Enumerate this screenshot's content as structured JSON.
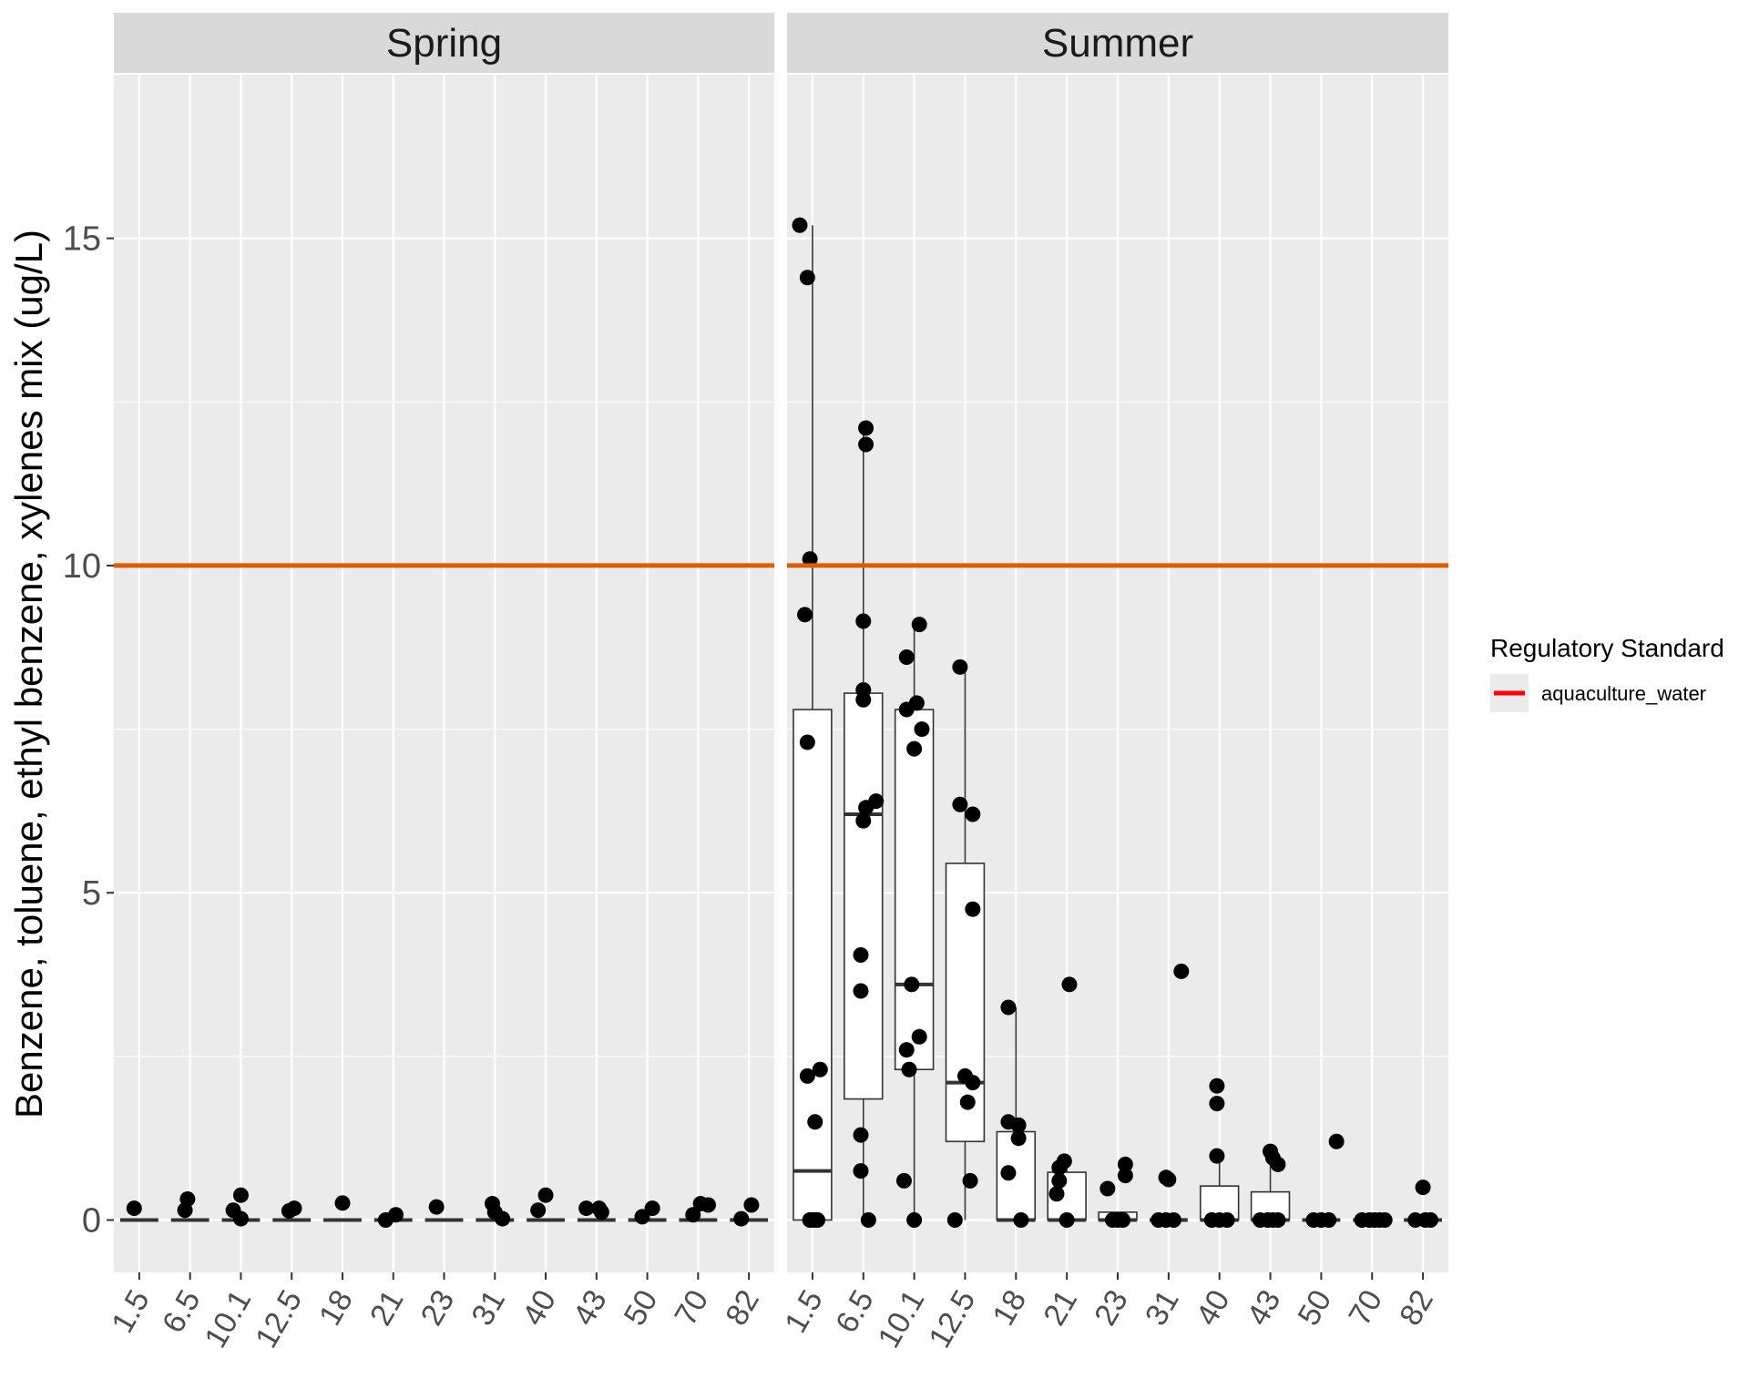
{
  "chart_data": {
    "type": "boxplot",
    "ylabel": "Benzene, toluene, ethyl benzene, xylenes mix (ug/L)",
    "xlabel": "",
    "ylim": [
      -0.8,
      17.5
    ],
    "yticks": [
      0,
      5,
      10,
      15
    ],
    "categories": [
      "1.5",
      "6.5",
      "10.1",
      "12.5",
      "18",
      "21",
      "23",
      "31",
      "40",
      "43",
      "50",
      "70",
      "82"
    ],
    "colors": {
      "panel_bg": "#ebebeb",
      "strip_bg": "#d9d9d9",
      "grid": "#ffffff",
      "standard_line": "#d95f02",
      "legend_key_line": "#ff0000",
      "points": "#000000"
    },
    "regulatory_standard": {
      "legend_title": "Regulatory Standard",
      "label": "aquaculture_water",
      "value": 10
    },
    "panels": [
      {
        "name": "Spring",
        "boxes": [
          {
            "category": "1.5",
            "min": 0,
            "q1": 0,
            "median": 0,
            "q3": 0,
            "max": 0
          },
          {
            "category": "6.5",
            "min": 0,
            "q1": 0,
            "median": 0,
            "q3": 0,
            "max": 0
          },
          {
            "category": "10.1",
            "min": 0,
            "q1": 0,
            "median": 0,
            "q3": 0,
            "max": 0
          },
          {
            "category": "12.5",
            "min": 0,
            "q1": 0,
            "median": 0,
            "q3": 0,
            "max": 0
          },
          {
            "category": "18",
            "min": 0,
            "q1": 0,
            "median": 0,
            "q3": 0,
            "max": 0
          },
          {
            "category": "21",
            "min": 0,
            "q1": 0,
            "median": 0,
            "q3": 0,
            "max": 0
          },
          {
            "category": "23",
            "min": 0,
            "q1": 0,
            "median": 0,
            "q3": 0,
            "max": 0
          },
          {
            "category": "31",
            "min": 0,
            "q1": 0,
            "median": 0,
            "q3": 0,
            "max": 0
          },
          {
            "category": "40",
            "min": 0,
            "q1": 0,
            "median": 0,
            "q3": 0,
            "max": 0
          },
          {
            "category": "43",
            "min": 0,
            "q1": 0,
            "median": 0,
            "q3": 0,
            "max": 0
          },
          {
            "category": "50",
            "min": 0,
            "q1": 0,
            "median": 0,
            "q3": 0,
            "max": 0
          },
          {
            "category": "70",
            "min": 0,
            "q1": 0,
            "median": 0,
            "q3": 0,
            "max": 0
          },
          {
            "category": "82",
            "min": 0,
            "q1": 0,
            "median": 0,
            "q3": 0,
            "max": 0
          }
        ],
        "points": [
          {
            "category": "1.5",
            "jitter": -0.1,
            "value": 0.18
          },
          {
            "category": "6.5",
            "jitter": -0.1,
            "value": 0.15
          },
          {
            "category": "6.5",
            "jitter": -0.05,
            "value": 0.32
          },
          {
            "category": "10.1",
            "jitter": -0.15,
            "value": 0.15
          },
          {
            "category": "10.1",
            "jitter": 0.0,
            "value": 0.38
          },
          {
            "category": "10.1",
            "jitter": 0.0,
            "value": 0.02
          },
          {
            "category": "12.5",
            "jitter": -0.05,
            "value": 0.14
          },
          {
            "category": "12.5",
            "jitter": 0.05,
            "value": 0.18
          },
          {
            "category": "18",
            "jitter": 0.0,
            "value": 0.26
          },
          {
            "category": "21",
            "jitter": -0.15,
            "value": 0.0
          },
          {
            "category": "21",
            "jitter": 0.05,
            "value": 0.08
          },
          {
            "category": "23",
            "jitter": -0.15,
            "value": 0.2
          },
          {
            "category": "31",
            "jitter": -0.05,
            "value": 0.25
          },
          {
            "category": "31",
            "jitter": 0.0,
            "value": 0.12
          },
          {
            "category": "31",
            "jitter": 0.15,
            "value": 0.02
          },
          {
            "category": "40",
            "jitter": -0.15,
            "value": 0.15
          },
          {
            "category": "40",
            "jitter": 0.0,
            "value": 0.38
          },
          {
            "category": "43",
            "jitter": -0.2,
            "value": 0.18
          },
          {
            "category": "43",
            "jitter": 0.05,
            "value": 0.18
          },
          {
            "category": "43",
            "jitter": 0.1,
            "value": 0.12
          },
          {
            "category": "50",
            "jitter": -0.1,
            "value": 0.05
          },
          {
            "category": "50",
            "jitter": 0.1,
            "value": 0.18
          },
          {
            "category": "70",
            "jitter": -0.1,
            "value": 0.08
          },
          {
            "category": "70",
            "jitter": 0.05,
            "value": 0.25
          },
          {
            "category": "70",
            "jitter": 0.2,
            "value": 0.23
          },
          {
            "category": "82",
            "jitter": -0.15,
            "value": 0.02
          },
          {
            "category": "82",
            "jitter": 0.05,
            "value": 0.23
          }
        ]
      },
      {
        "name": "Summer",
        "boxes": [
          {
            "category": "1.5",
            "min": 0,
            "q1": 0,
            "median": 0.75,
            "q3": 7.8,
            "max": 15.2
          },
          {
            "category": "6.5",
            "min": 0,
            "q1": 1.85,
            "median": 6.2,
            "q3": 8.05,
            "max": 12.1
          },
          {
            "category": "10.1",
            "min": 0,
            "q1": 2.3,
            "median": 3.6,
            "q3": 7.8,
            "max": 9.1
          },
          {
            "category": "12.5",
            "min": 0,
            "q1": 1.2,
            "median": 2.1,
            "q3": 5.45,
            "max": 8.45
          },
          {
            "category": "18",
            "min": 0,
            "q1": 0,
            "median": 0,
            "q3": 1.35,
            "max": 3.25
          },
          {
            "category": "21",
            "min": 0,
            "q1": 0,
            "median": 0,
            "q3": 0.73,
            "max": 0.9
          },
          {
            "category": "23",
            "min": 0,
            "q1": 0,
            "median": 0,
            "q3": 0.12,
            "max": 0.12
          },
          {
            "category": "31",
            "min": 0,
            "q1": 0,
            "median": 0,
            "q3": 0,
            "max": 0
          },
          {
            "category": "40",
            "min": 0,
            "q1": 0,
            "median": 0,
            "q3": 0.52,
            "max": 0.98
          },
          {
            "category": "43",
            "min": 0,
            "q1": 0,
            "median": 0,
            "q3": 0.43,
            "max": 1.05
          },
          {
            "category": "50",
            "min": 0,
            "q1": 0,
            "median": 0,
            "q3": 0,
            "max": 0
          },
          {
            "category": "70",
            "min": 0,
            "q1": 0,
            "median": 0,
            "q3": 0,
            "max": 0
          },
          {
            "category": "82",
            "min": 0,
            "q1": 0,
            "median": 0,
            "q3": 0,
            "max": 0
          }
        ],
        "points": [
          {
            "category": "1.5",
            "jitter": -0.25,
            "value": 15.2
          },
          {
            "category": "1.5",
            "jitter": -0.1,
            "value": 14.4
          },
          {
            "category": "1.5",
            "jitter": -0.05,
            "value": 10.1
          },
          {
            "category": "1.5",
            "jitter": -0.15,
            "value": 9.25
          },
          {
            "category": "1.5",
            "jitter": -0.1,
            "value": 7.3
          },
          {
            "category": "1.5",
            "jitter": 0.15,
            "value": 2.3
          },
          {
            "category": "1.5",
            "jitter": -0.1,
            "value": 2.2
          },
          {
            "category": "1.5",
            "jitter": 0.05,
            "value": 1.5
          },
          {
            "category": "1.5",
            "jitter": -0.05,
            "value": 0.0
          },
          {
            "category": "1.5",
            "jitter": 0.0,
            "value": 0.0
          },
          {
            "category": "1.5",
            "jitter": 0.05,
            "value": 0.0
          },
          {
            "category": "1.5",
            "jitter": 0.1,
            "value": 0.0
          },
          {
            "category": "6.5",
            "jitter": 0.05,
            "value": 12.1
          },
          {
            "category": "6.5",
            "jitter": 0.05,
            "value": 11.85
          },
          {
            "category": "6.5",
            "jitter": 0.0,
            "value": 9.15
          },
          {
            "category": "6.5",
            "jitter": 0.0,
            "value": 8.1
          },
          {
            "category": "6.5",
            "jitter": 0.0,
            "value": 7.95
          },
          {
            "category": "6.5",
            "jitter": 0.25,
            "value": 6.4
          },
          {
            "category": "6.5",
            "jitter": 0.05,
            "value": 6.3
          },
          {
            "category": "6.5",
            "jitter": 0.0,
            "value": 6.1
          },
          {
            "category": "6.5",
            "jitter": -0.05,
            "value": 4.05
          },
          {
            "category": "6.5",
            "jitter": -0.05,
            "value": 3.5
          },
          {
            "category": "6.5",
            "jitter": -0.05,
            "value": 1.3
          },
          {
            "category": "6.5",
            "jitter": -0.05,
            "value": 0.75
          },
          {
            "category": "6.5",
            "jitter": 0.1,
            "value": 0.0
          },
          {
            "category": "10.1",
            "jitter": -0.15,
            "value": 8.6
          },
          {
            "category": "10.1",
            "jitter": 0.1,
            "value": 9.1
          },
          {
            "category": "10.1",
            "jitter": 0.05,
            "value": 7.9
          },
          {
            "category": "10.1",
            "jitter": -0.15,
            "value": 7.8
          },
          {
            "category": "10.1",
            "jitter": 0.15,
            "value": 7.5
          },
          {
            "category": "10.1",
            "jitter": 0.0,
            "value": 7.2
          },
          {
            "category": "10.1",
            "jitter": -0.05,
            "value": 3.6
          },
          {
            "category": "10.1",
            "jitter": 0.1,
            "value": 2.8
          },
          {
            "category": "10.1",
            "jitter": -0.15,
            "value": 2.6
          },
          {
            "category": "10.1",
            "jitter": -0.1,
            "value": 2.3
          },
          {
            "category": "10.1",
            "jitter": -0.2,
            "value": 0.6
          },
          {
            "category": "10.1",
            "jitter": 0.0,
            "value": 0.0
          },
          {
            "category": "12.5",
            "jitter": -0.1,
            "value": 8.45
          },
          {
            "category": "12.5",
            "jitter": -0.1,
            "value": 6.35
          },
          {
            "category": "12.5",
            "jitter": 0.15,
            "value": 6.2
          },
          {
            "category": "12.5",
            "jitter": 0.15,
            "value": 4.75
          },
          {
            "category": "12.5",
            "jitter": 0.0,
            "value": 2.2
          },
          {
            "category": "12.5",
            "jitter": 0.15,
            "value": 2.1
          },
          {
            "category": "12.5",
            "jitter": 0.05,
            "value": 1.8
          },
          {
            "category": "12.5",
            "jitter": 0.1,
            "value": 0.6
          },
          {
            "category": "12.5",
            "jitter": -0.2,
            "value": 0.0
          },
          {
            "category": "18",
            "jitter": -0.15,
            "value": 3.25
          },
          {
            "category": "18",
            "jitter": -0.15,
            "value": 1.5
          },
          {
            "category": "18",
            "jitter": 0.05,
            "value": 1.45
          },
          {
            "category": "18",
            "jitter": 0.05,
            "value": 1.25
          },
          {
            "category": "18",
            "jitter": -0.15,
            "value": 0.72
          },
          {
            "category": "18",
            "jitter": 0.1,
            "value": 0.0
          },
          {
            "category": "21",
            "jitter": 0.05,
            "value": 3.6
          },
          {
            "category": "21",
            "jitter": -0.05,
            "value": 0.9
          },
          {
            "category": "21",
            "jitter": -0.15,
            "value": 0.8
          },
          {
            "category": "21",
            "jitter": -0.15,
            "value": 0.6
          },
          {
            "category": "21",
            "jitter": -0.2,
            "value": 0.4
          },
          {
            "category": "21",
            "jitter": 0.0,
            "value": 0.0
          },
          {
            "category": "23",
            "jitter": 0.15,
            "value": 0.85
          },
          {
            "category": "23",
            "jitter": 0.15,
            "value": 0.68
          },
          {
            "category": "23",
            "jitter": -0.2,
            "value": 0.48
          },
          {
            "category": "23",
            "jitter": -0.1,
            "value": 0.0
          },
          {
            "category": "23",
            "jitter": 0.0,
            "value": 0.0
          },
          {
            "category": "23",
            "jitter": 0.1,
            "value": 0.0
          },
          {
            "category": "31",
            "jitter": 0.25,
            "value": 3.8
          },
          {
            "category": "31",
            "jitter": -0.05,
            "value": 0.65
          },
          {
            "category": "31",
            "jitter": 0.0,
            "value": 0.62
          },
          {
            "category": "31",
            "jitter": -0.2,
            "value": 0.0
          },
          {
            "category": "31",
            "jitter": -0.05,
            "value": 0.0
          },
          {
            "category": "31",
            "jitter": 0.1,
            "value": 0.0
          },
          {
            "category": "40",
            "jitter": -0.05,
            "value": 2.05
          },
          {
            "category": "40",
            "jitter": -0.05,
            "value": 1.78
          },
          {
            "category": "40",
            "jitter": -0.05,
            "value": 0.98
          },
          {
            "category": "40",
            "jitter": -0.15,
            "value": 0.0
          },
          {
            "category": "40",
            "jitter": 0.0,
            "value": 0.0
          },
          {
            "category": "40",
            "jitter": 0.15,
            "value": 0.0
          },
          {
            "category": "43",
            "jitter": 0.0,
            "value": 1.05
          },
          {
            "category": "43",
            "jitter": 0.05,
            "value": 0.95
          },
          {
            "category": "43",
            "jitter": 0.15,
            "value": 0.85
          },
          {
            "category": "43",
            "jitter": -0.2,
            "value": 0.0
          },
          {
            "category": "43",
            "jitter": -0.05,
            "value": 0.0
          },
          {
            "category": "43",
            "jitter": 0.05,
            "value": 0.0
          },
          {
            "category": "43",
            "jitter": 0.15,
            "value": 0.0
          },
          {
            "category": "50",
            "jitter": 0.3,
            "value": 1.2
          },
          {
            "category": "50",
            "jitter": -0.15,
            "value": 0.0
          },
          {
            "category": "50",
            "jitter": 0.0,
            "value": 0.0
          },
          {
            "category": "50",
            "jitter": 0.15,
            "value": 0.0
          },
          {
            "category": "70",
            "jitter": -0.2,
            "value": 0.0
          },
          {
            "category": "70",
            "jitter": -0.05,
            "value": 0.0
          },
          {
            "category": "70",
            "jitter": 0.05,
            "value": 0.0
          },
          {
            "category": "70",
            "jitter": 0.15,
            "value": 0.0
          },
          {
            "category": "70",
            "jitter": 0.25,
            "value": 0.0
          },
          {
            "category": "82",
            "jitter": -0.15,
            "value": 0.0
          },
          {
            "category": "82",
            "jitter": 0.0,
            "value": 0.5
          },
          {
            "category": "82",
            "jitter": 0.05,
            "value": 0.0
          },
          {
            "category": "82",
            "jitter": 0.15,
            "value": 0.0
          }
        ]
      }
    ]
  }
}
